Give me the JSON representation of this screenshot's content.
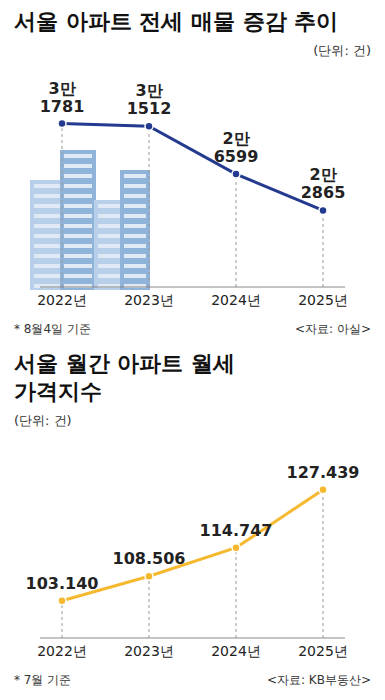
{
  "chart_data": [
    {
      "type": "line",
      "title": "서울 아파트 전세 매물 증감 추이",
      "unit": "(단위: 건)",
      "note": "* 8월4일 기준",
      "source": "<자료: 아실>",
      "categories": [
        "2022년",
        "2023년",
        "2024년",
        "2025년"
      ],
      "values": [
        31781,
        31512,
        26599,
        22865
      ],
      "value_labels": [
        "3만 1781",
        "3만 1512",
        "2만 6599",
        "2만 2865"
      ],
      "color": "#233a8e",
      "ylim": [
        15000,
        34000
      ],
      "data_labels": true,
      "tick_labels": "x",
      "marker": "circle",
      "grid": false
    },
    {
      "type": "line",
      "title": "서울 월간 아파트 월세가격지수",
      "unit": "(단위: 건)",
      "note": "* 7월 기준",
      "source": "<자료: KB부동산>",
      "categories": [
        "2022년",
        "2023년",
        "2024년",
        "2025년"
      ],
      "values": [
        103.14,
        108.506,
        114.747,
        127.439
      ],
      "value_labels": [
        "103.140",
        "108.506",
        "114.747",
        "127.439"
      ],
      "color": "#f5b82e",
      "ylim": [
        95,
        130
      ],
      "data_labels": true,
      "tick_labels": "x",
      "marker": "circle",
      "grid": false
    }
  ]
}
